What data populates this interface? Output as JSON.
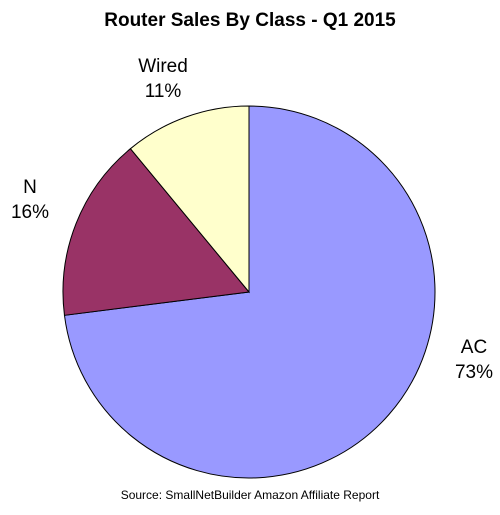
{
  "chart_data": {
    "type": "pie",
    "title": "Router Sales By Class - Q1 2015",
    "source": "Source: SmallNetBuilder Amazon Affiliate Report",
    "slices": [
      {
        "name": "AC",
        "value": 73,
        "label": "73%",
        "color": "#9999ff"
      },
      {
        "name": "N",
        "value": 16,
        "label": "16%",
        "color": "#993366"
      },
      {
        "name": "Wired",
        "value": 11,
        "label": "11%",
        "color": "#ffffcc"
      }
    ],
    "start_angle_deg": 0,
    "direction": "clockwise",
    "legend": "none"
  }
}
